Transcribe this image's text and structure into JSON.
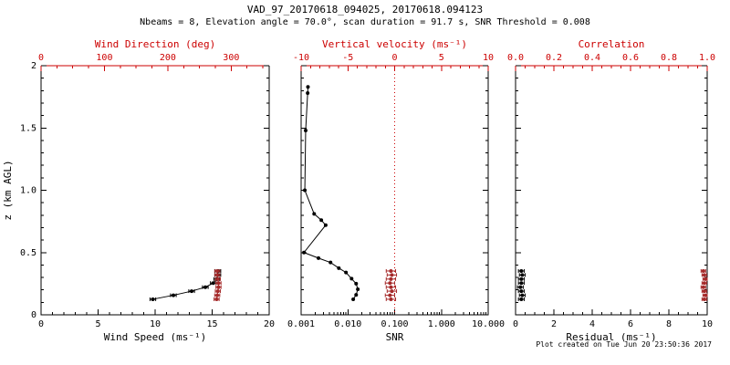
{
  "title": "VAD_97_20170618_094025, 20170618.094123",
  "subtitle": "Nbeams = 8, Elevation angle = 70.0°, scan duration = 91.7 s, SNR Threshold = 0.008",
  "footer": "Plot created on Tue Jun 20 23:50:36 2017",
  "colors": {
    "axis_black": "#000000",
    "axis_red": "#cc0000",
    "data_black": "#000000",
    "data_red": "#a52a2a",
    "background": "#ffffff"
  },
  "chart_data": {
    "type": "line",
    "description": "Three-panel VAD lidar wind profile: wind speed/direction, SNR/vertical velocity, residual/correlation vs height",
    "ylabel": "z (km AGL)",
    "ylim": [
      0,
      2
    ],
    "yticks": [
      0,
      0.5,
      1,
      1.5,
      2
    ],
    "ytick_labels": [
      "0",
      "0.5",
      "1.0",
      "1.5",
      "2"
    ],
    "y_minor_step": 0.1,
    "panels": [
      {
        "name": "wind",
        "bottom_axis": {
          "label": "Wind Speed (ms⁻¹)",
          "scale": "linear",
          "lim": [
            0,
            20
          ],
          "ticks": [
            0,
            5,
            10,
            15,
            20
          ],
          "tick_labels": [
            "0",
            "5",
            "10",
            "15",
            "20"
          ],
          "minor_step": 1
        },
        "top_axis": {
          "label": "Wind Direction (deg)",
          "scale": "linear",
          "lim": [
            0,
            360
          ],
          "ticks": [
            0,
            100,
            200,
            300
          ],
          "tick_labels": [
            "0",
            "100",
            "200",
            "300"
          ],
          "minor_step": 25
        },
        "black_series": {
          "name": "wind-speed",
          "line": true,
          "xerr": 0.25,
          "z": [
            0.125,
            0.157,
            0.19,
            0.222,
            0.255,
            0.287,
            0.32,
            0.352
          ],
          "x": [
            9.8,
            11.6,
            13.2,
            14.4,
            15.1,
            15.4,
            15.5,
            15.5
          ]
        },
        "red_series": {
          "name": "wind-direction",
          "line": true,
          "xerr": 4,
          "z": [
            0.125,
            0.157,
            0.19,
            0.222,
            0.255,
            0.287,
            0.32,
            0.352
          ],
          "x": [
            277,
            278,
            279,
            280,
            280,
            279,
            278,
            278
          ]
        }
      },
      {
        "name": "snr",
        "bottom_axis": {
          "label": "SNR",
          "scale": "log",
          "lim": [
            0.001,
            10
          ],
          "ticks": [
            0.001,
            0.01,
            0.1,
            1,
            10
          ],
          "tick_labels": [
            "0.001",
            "0.010",
            "0.100",
            "1.000",
            "10.000"
          ]
        },
        "top_axis": {
          "label": "Vertical velocity (ms⁻¹)",
          "scale": "linear",
          "lim": [
            -10,
            10
          ],
          "ticks": [
            -10,
            -5,
            0,
            5,
            10
          ],
          "tick_labels": [
            "-10",
            "-5",
            "0",
            "5",
            "10"
          ],
          "minor_step": 1
        },
        "red_refline": {
          "value": 0
        },
        "black_series": {
          "name": "snr-profile",
          "line": true,
          "z": [
            1.83,
            1.78,
            1.48,
            1.0,
            0.81,
            0.76,
            0.72,
            0.5,
            0.455,
            0.42,
            0.375,
            0.34,
            0.29,
            0.25,
            0.205,
            0.16,
            0.125
          ],
          "x": [
            0.0014,
            0.00138,
            0.00125,
            0.0012,
            0.0019,
            0.0027,
            0.00335,
            0.00115,
            0.00235,
            0.00425,
            0.0064,
            0.0091,
            0.012,
            0.015,
            0.0163,
            0.015,
            0.013
          ]
        },
        "red_series": {
          "name": "vertical-velocity",
          "line": false,
          "xerr": 0.5,
          "z": [
            0.125,
            0.157,
            0.19,
            0.222,
            0.255,
            0.287,
            0.32,
            0.352
          ],
          "x": [
            -0.4,
            -0.5,
            -0.3,
            -0.4,
            -0.5,
            -0.4,
            -0.3,
            -0.4
          ]
        }
      },
      {
        "name": "residual",
        "bottom_axis": {
          "label": "Residual (ms⁻¹)",
          "scale": "linear",
          "lim": [
            0,
            10
          ],
          "ticks": [
            0,
            2,
            4,
            6,
            8,
            10
          ],
          "tick_labels": [
            "0",
            "2",
            "4",
            "6",
            "8",
            "10"
          ],
          "minor_step": 0.5
        },
        "top_axis": {
          "label": "Correlation",
          "scale": "linear",
          "lim": [
            0,
            1
          ],
          "ticks": [
            0,
            0.2,
            0.4,
            0.6,
            0.8,
            1
          ],
          "tick_labels": [
            "0.0",
            "0.2",
            "0.4",
            "0.6",
            "0.8",
            "1.0"
          ],
          "minor_step": 0.05
        },
        "black_series": {
          "name": "residual",
          "line": false,
          "xerr": 0.15,
          "z": [
            0.125,
            0.157,
            0.19,
            0.222,
            0.255,
            0.287,
            0.32,
            0.352
          ],
          "x": [
            0.3,
            0.35,
            0.3,
            0.25,
            0.3,
            0.3,
            0.35,
            0.3
          ]
        },
        "red_series": {
          "name": "correlation",
          "line": false,
          "xerr": 0.012,
          "z": [
            0.125,
            0.157,
            0.19,
            0.222,
            0.255,
            0.287,
            0.32,
            0.352
          ],
          "x": [
            0.985,
            0.99,
            0.985,
            0.98,
            0.985,
            0.99,
            0.985,
            0.98
          ]
        }
      }
    ]
  }
}
